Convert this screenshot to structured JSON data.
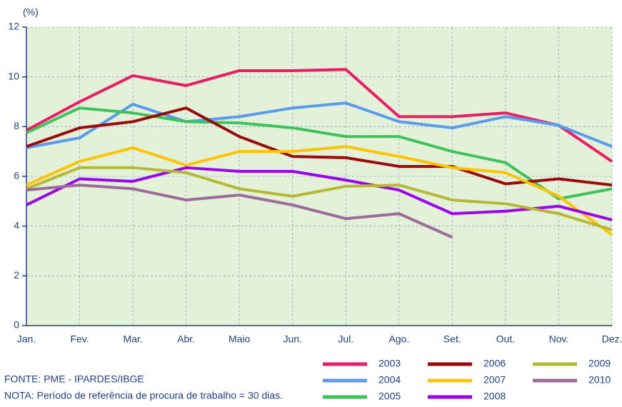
{
  "chart_data": {
    "type": "line",
    "y_label": "(%)",
    "categories": [
      "Jan.",
      "Fev.",
      "Mar.",
      "Abr.",
      "Maio",
      "Jun.",
      "Jul.",
      "Ago.",
      "Set.",
      "Out.",
      "Nov.",
      "Dez."
    ],
    "ylim": [
      0,
      12
    ],
    "yticks": [
      0,
      2,
      4,
      6,
      8,
      10,
      12
    ],
    "grid": true,
    "series": [
      {
        "name": "2003",
        "color": "#ec1c64",
        "values": [
          7.85,
          9.0,
          10.05,
          9.65,
          10.25,
          10.25,
          10.3,
          8.4,
          8.4,
          8.55,
          8.05,
          6.6
        ]
      },
      {
        "name": "2004",
        "color": "#5b9bef",
        "values": [
          7.15,
          7.55,
          8.9,
          8.2,
          8.4,
          8.75,
          8.95,
          8.2,
          7.95,
          8.4,
          8.05,
          7.2
        ]
      },
      {
        "name": "2005",
        "color": "#3cc35a",
        "values": [
          7.75,
          8.75,
          8.55,
          8.2,
          8.15,
          7.95,
          7.6,
          7.6,
          7.0,
          6.55,
          5.1,
          5.5
        ]
      },
      {
        "name": "2006",
        "color": "#9b0a0a",
        "values": [
          7.2,
          7.95,
          8.2,
          8.75,
          7.6,
          6.8,
          6.75,
          6.4,
          6.4,
          5.7,
          5.9,
          5.65
        ]
      },
      {
        "name": "2007",
        "color": "#ffc300",
        "values": [
          5.65,
          6.6,
          7.15,
          6.45,
          7.0,
          7.0,
          7.2,
          6.8,
          6.35,
          6.15,
          5.2,
          3.65
        ]
      },
      {
        "name": "2008",
        "color": "#9a05ee",
        "values": [
          4.85,
          5.9,
          5.8,
          6.35,
          6.2,
          6.2,
          5.85,
          5.45,
          4.5,
          4.6,
          4.8,
          4.25
        ]
      },
      {
        "name": "2009",
        "color": "#b5b835",
        "values": [
          5.5,
          6.35,
          6.35,
          6.15,
          5.5,
          5.2,
          5.6,
          5.65,
          5.05,
          4.9,
          4.5,
          3.85
        ]
      },
      {
        "name": "2010",
        "color": "#9c6b97",
        "values": [
          5.45,
          5.65,
          5.5,
          5.05,
          5.25,
          4.85,
          4.3,
          4.5,
          3.55,
          null,
          null,
          null
        ]
      }
    ]
  },
  "footer": {
    "source": "FONTE: PME - IPARDES/IBGE",
    "note": "NOTA: Período de referência de procura de trabalho = 30 dias."
  }
}
